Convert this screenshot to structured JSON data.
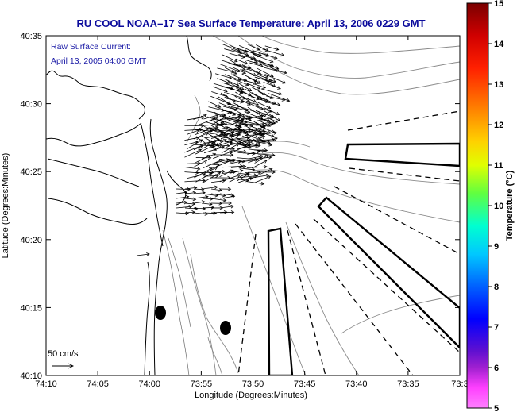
{
  "title": "RU COOL  NOAA–17  Sea Surface Temperature:  April 13, 2006 0229 GMT",
  "legend": {
    "line1": "Raw Surface Current:",
    "line2": "April 13, 2005 04:00 GMT",
    "scale_label": "50 cm/s"
  },
  "x_axis": {
    "label": "Longitude (Degrees:Minutes)",
    "ticks": [
      "74:10",
      "74:05",
      "74:00",
      "73:55",
      "73:50",
      "73:45",
      "73:40",
      "73:35",
      "73:3"
    ]
  },
  "y_axis": {
    "label": "Latitude (Degrees:Minutes)",
    "ticks": [
      "40:35",
      "40:30",
      "40:25",
      "40:20",
      "40:15",
      "40:10"
    ]
  },
  "colorbar": {
    "label": "Temperature (°C)",
    "ticks": [
      "15",
      "14",
      "13",
      "12",
      "11",
      "10",
      "9",
      "8",
      "7",
      "6",
      "5"
    ],
    "colors": [
      "#8b0000",
      "#ff0000",
      "#ff8000",
      "#ffff00",
      "#80ff00",
      "#00ffff",
      "#0060ff",
      "#0000ff",
      "#6000c0",
      "#ff40ff"
    ]
  }
}
